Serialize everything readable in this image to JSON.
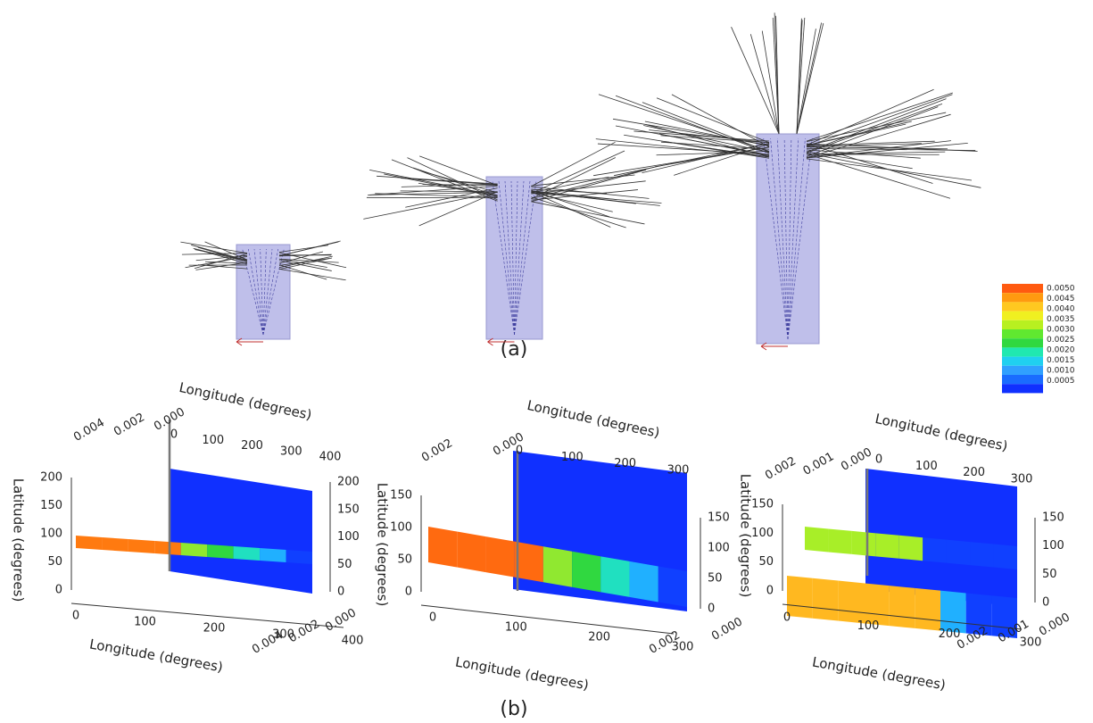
{
  "panel_a": {
    "label": "(a)"
  },
  "colorbar": {
    "labels": [
      "0.0050",
      "0.0045",
      "0.0040",
      "0.0035",
      "0.0030",
      "0.0025",
      "0.0020",
      "0.0015",
      "0.0010",
      "0.0005"
    ]
  },
  "panel_b": {
    "label": "(b)",
    "plots": [
      {
        "top_depth_ticks": [
          "0.004",
          "0.002",
          "0.000"
        ],
        "top_lon_ticks": [
          "0",
          "100",
          "200",
          "300",
          "400"
        ],
        "top_label": "Longitude (degrees)",
        "left_ticks": [
          "0",
          "50",
          "100",
          "150",
          "200"
        ],
        "left_label": "Latitude (degrees)",
        "right_ticks": [
          "0",
          "50",
          "100",
          "150",
          "200"
        ],
        "right_label": "Latitude (degrees)",
        "bottom_lon_ticks": [
          "0",
          "100",
          "200",
          "300",
          "400"
        ],
        "bottom_depth_ticks": [
          "0.004",
          "0.002",
          "0.000"
        ],
        "bottom_label": "Longitude (degrees)"
      },
      {
        "top_depth_ticks": [
          "0.002",
          "0.000"
        ],
        "top_lon_ticks": [
          "0",
          "100",
          "200",
          "300"
        ],
        "top_label": "Longitude (degrees)",
        "left_ticks": [
          "0",
          "50",
          "100",
          "150"
        ],
        "right_ticks": [
          "0",
          "50",
          "100",
          "150"
        ],
        "right_label": "Latitude (degrees)",
        "bottom_lon_ticks": [
          "0",
          "100",
          "200",
          "300"
        ],
        "bottom_depth_ticks": [
          "0.002",
          "0.000"
        ],
        "bottom_label": "Longitude (degrees)"
      },
      {
        "top_depth_ticks": [
          "0.002",
          "0.001",
          "0.000"
        ],
        "top_lon_ticks": [
          "0",
          "100",
          "200",
          "300"
        ],
        "top_label": "Longitude (degrees)",
        "left_ticks": [
          "0",
          "50",
          "100",
          "150"
        ],
        "right_ticks": [
          "0",
          "50",
          "100",
          "150"
        ],
        "bottom_lon_ticks": [
          "0",
          "100",
          "200",
          "300"
        ],
        "bottom_depth_ticks": [
          "0.002",
          "0.001",
          "0.000"
        ],
        "bottom_label": "Longitude (degrees)"
      }
    ]
  }
}
